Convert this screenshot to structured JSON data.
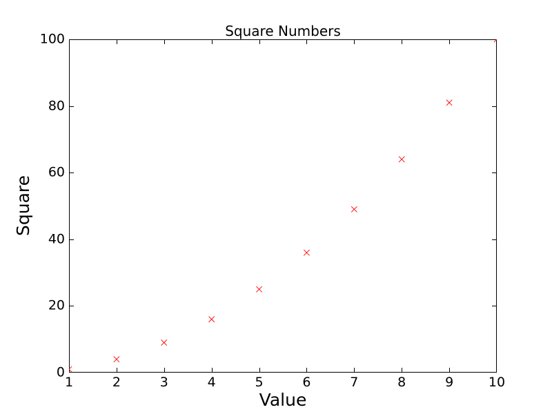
{
  "figure": {
    "background_color": "#ffffff",
    "axis_color": "#000000",
    "text_color": "#000000"
  },
  "chart_data": {
    "type": "scatter",
    "title": "Square Numbers",
    "xlabel": "Value",
    "ylabel": "Square",
    "x": [
      1,
      2,
      3,
      4,
      5,
      6,
      7,
      8,
      9,
      10
    ],
    "y": [
      1,
      4,
      9,
      16,
      25,
      36,
      49,
      64,
      81,
      100
    ],
    "marker": "x",
    "marker_color": "#ff0000",
    "marker_size_px": 8.3,
    "xlim": [
      1,
      10
    ],
    "ylim": [
      0,
      100
    ],
    "xticks": [
      1,
      2,
      3,
      4,
      5,
      6,
      7,
      8,
      9,
      10
    ],
    "yticks": [
      0,
      20,
      40,
      60,
      80,
      100
    ],
    "grid": false,
    "legend": "none",
    "tick_direction": "in"
  }
}
